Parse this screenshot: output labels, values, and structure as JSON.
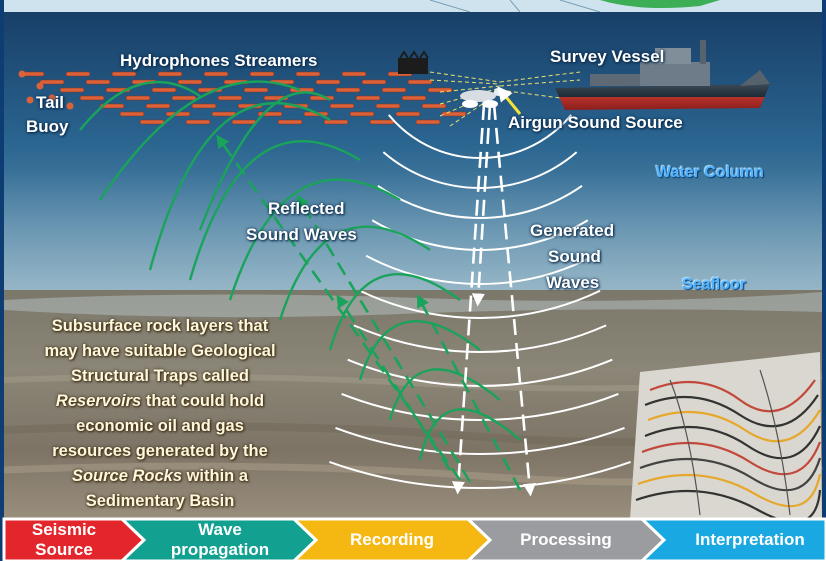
{
  "labels": {
    "hydrophones": "Hydrophones Streamers",
    "survey_vessel": "Survey Vessel",
    "tail_buoy_line1": "Tail",
    "tail_buoy_line2": "Buoy",
    "airgun": "Airgun Sound Source",
    "water_column": "Water Column",
    "reflected_line1": "Reflected",
    "reflected_line2": "Sound Waves",
    "generated_line1": "Generated",
    "generated_line2": "Sound",
    "generated_line3": "Waves",
    "seafloor": "Seafloor"
  },
  "geology": {
    "line1": "Subsurface rock layers that",
    "line2": "may have suitable Geological",
    "line3": "Structural Traps called",
    "line4_italic": "Reservoirs",
    "line4_rest": " that could hold",
    "line5": "economic oil and gas",
    "line6": "resources generated by the",
    "line7_italic": "Source Rocks",
    "line7_rest": " within a",
    "line8": "Sedimentary Basin"
  },
  "steps": [
    {
      "line1": "Seismic",
      "line2": "Source",
      "color": "#e3262c"
    },
    {
      "line1": "Wave",
      "line2": "propagation",
      "color": "#12a090"
    },
    {
      "line1": "Recording",
      "line2": "",
      "color": "#f5b712"
    },
    {
      "line1": "Processing",
      "line2": "",
      "color": "#9b9ca0"
    },
    {
      "line1": "Interpretation",
      "line2": "",
      "color": "#1aa8e2"
    }
  ],
  "colors": {
    "water_top": "#1a4f7e",
    "water_bottom": "#6f9cb6",
    "sediment_top": "#6f6a5c",
    "sediment_bottom": "#8e8474",
    "frame": "#0e3d73",
    "generated_wave": "#ffffff",
    "reflected_wave": "#1aa35a"
  }
}
